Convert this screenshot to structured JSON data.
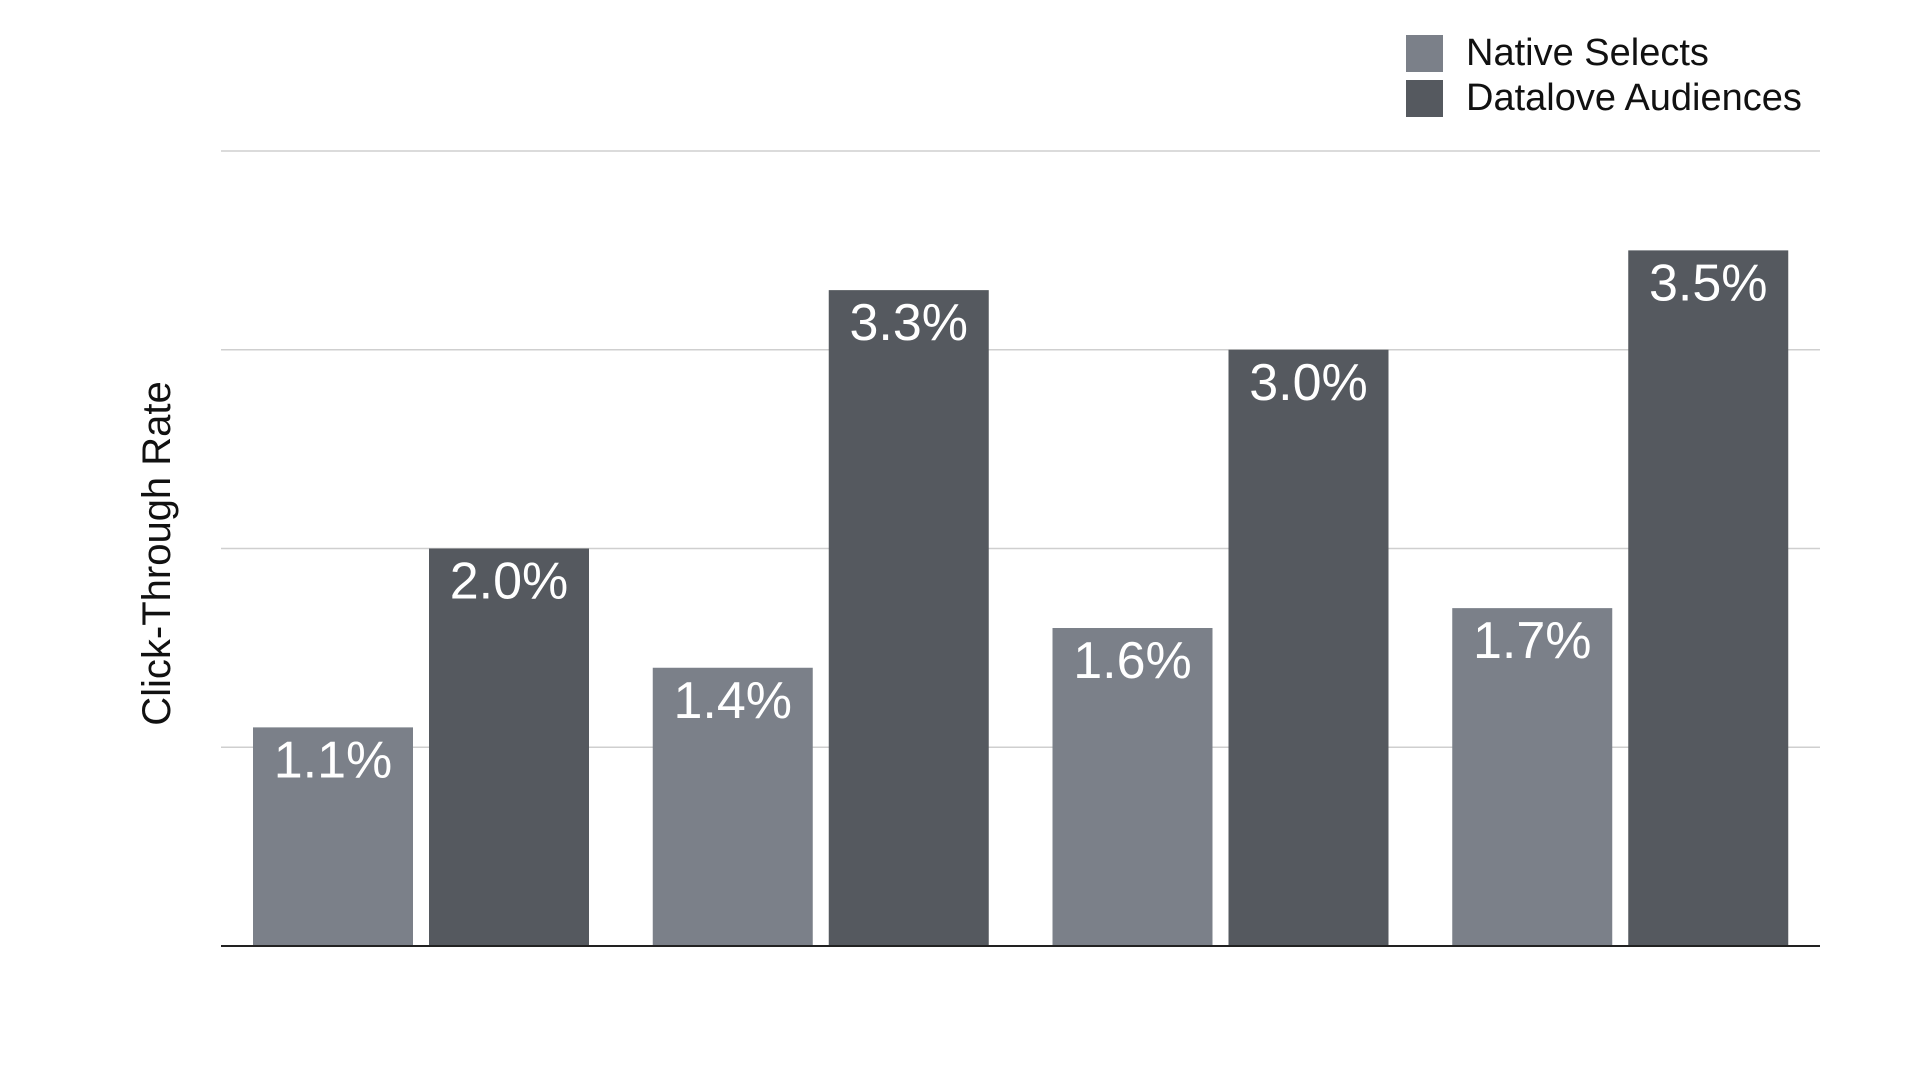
{
  "chart_data": {
    "type": "bar",
    "title": "",
    "xlabel": "",
    "ylabel": "Click-Through Rate",
    "ylim": [
      0,
      4
    ],
    "grid": true,
    "legend_position": "top-right",
    "categories": [
      "",
      "",
      "",
      ""
    ],
    "series": [
      {
        "name": "Native Selects",
        "color": "#7b8089",
        "values": [
          1.1,
          1.4,
          1.6,
          1.7
        ],
        "labels": [
          "1.1%",
          "1.4%",
          "1.6%",
          "1.7%"
        ]
      },
      {
        "name": "Datalove Audiences",
        "color": "#55595f",
        "values": [
          2.0,
          3.3,
          3.0,
          3.5
        ],
        "labels": [
          "2.0%",
          "3.3%",
          "3.0%",
          "3.5%"
        ]
      }
    ]
  }
}
